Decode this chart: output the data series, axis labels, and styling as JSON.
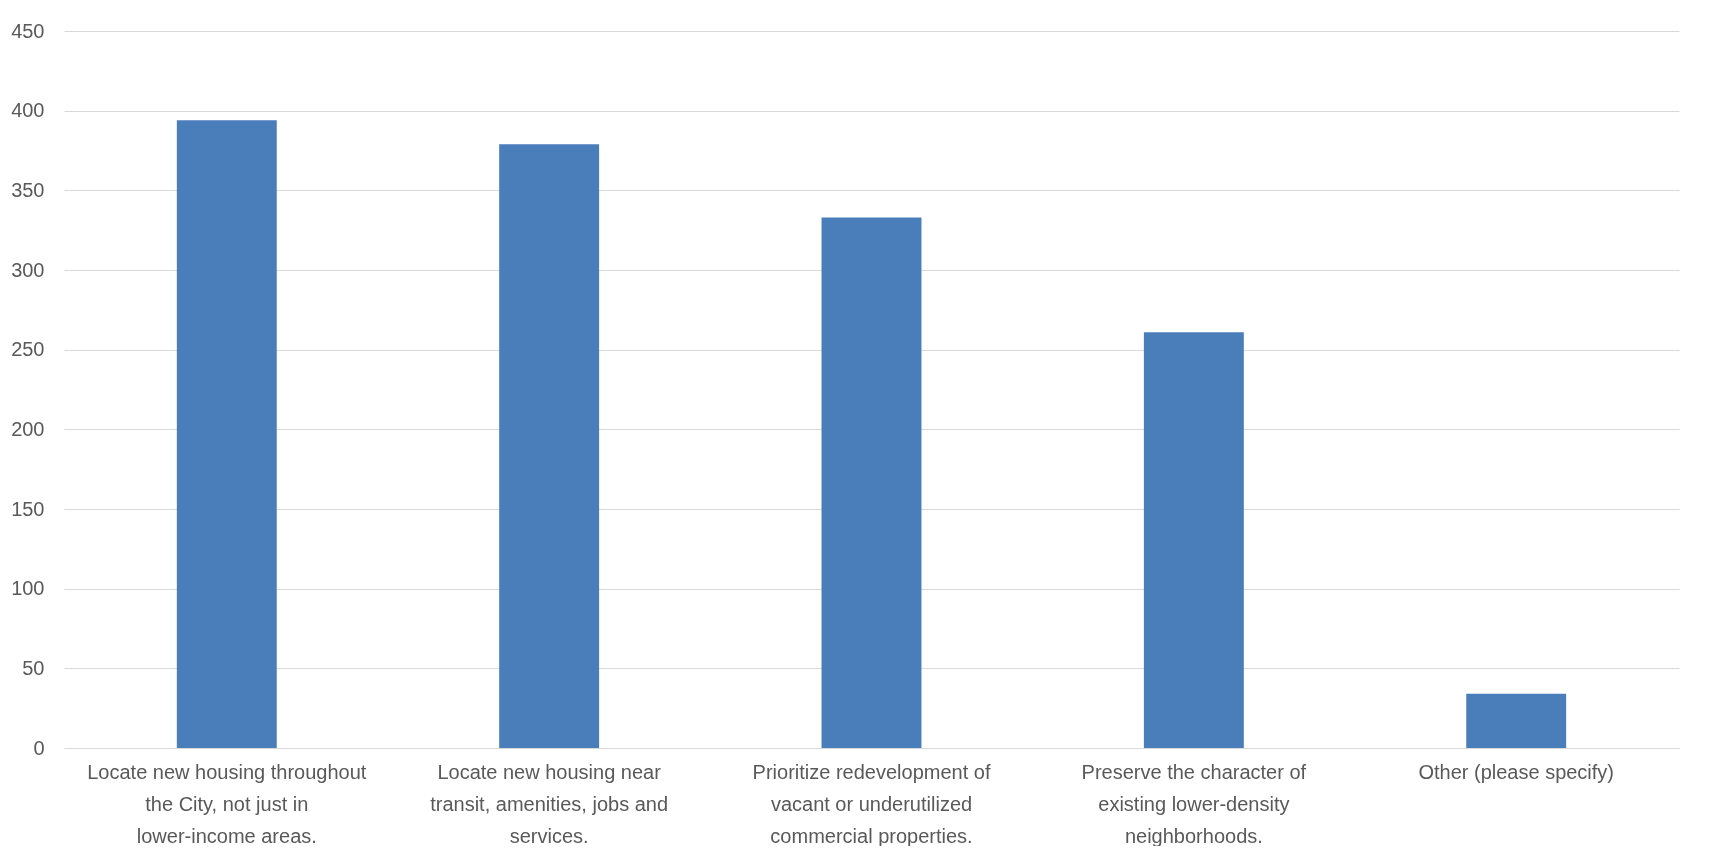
{
  "chart_data": {
    "type": "bar",
    "categories": [
      "Locate new housing throughout the City, not just in lower-income areas.",
      "Locate new housing near transit, amenities, jobs and services.",
      "Prioritize redevelopment of vacant or underutilized commercial properties.",
      "Preserve the character of existing lower-density neighborhoods.",
      "Other (please specify)"
    ],
    "values": [
      394,
      379,
      333,
      261,
      34
    ],
    "color": "#4a7ebb",
    "ylim": [
      0,
      450
    ],
    "yticks": [
      0,
      50,
      100,
      150,
      200,
      250,
      300,
      350,
      400,
      450
    ],
    "grid": "y"
  }
}
